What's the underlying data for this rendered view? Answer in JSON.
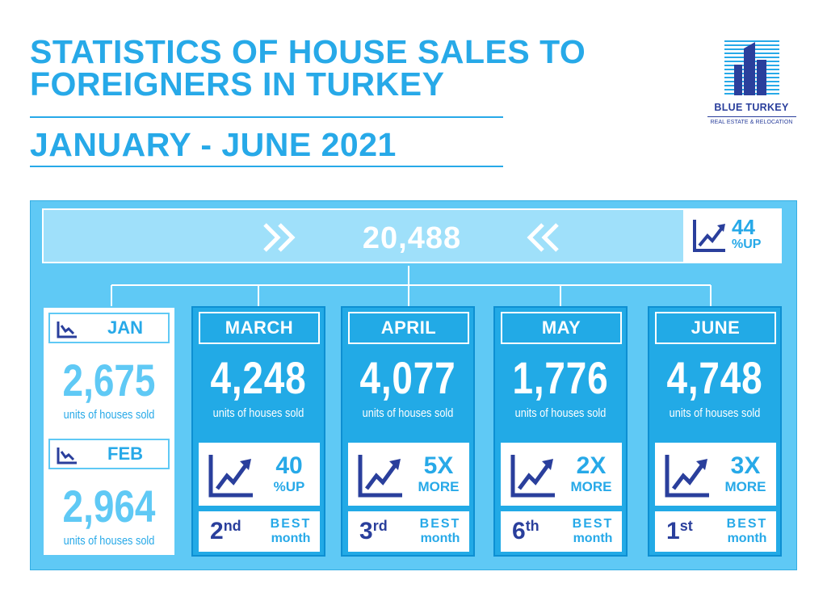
{
  "header": {
    "title": "STATISTICS OF HOUSE SALES TO FOREIGNERS IN TURKEY",
    "subtitle": "JANUARY - JUNE 2021"
  },
  "logo": {
    "name": "BLUE TURKEY",
    "tagline": "REAL ESTATE & RELOCATION"
  },
  "total": {
    "value": "20,488",
    "change_value": "44",
    "change_label": "%UP"
  },
  "jan_feb": {
    "jan": {
      "label": "JAN",
      "value": "2,675",
      "units": "units of houses sold"
    },
    "feb": {
      "label": "FEB",
      "value": "2,964",
      "units": "units of houses sold"
    }
  },
  "months": [
    {
      "label": "MARCH",
      "value": "4,248",
      "units": "units of houses sold",
      "stat_top": "40",
      "stat_bottom": "%UP",
      "rank": "2",
      "rank_suffix": "nd",
      "rank_best": "BEST",
      "rank_month": "month"
    },
    {
      "label": "APRIL",
      "value": "4,077",
      "units": "units of houses sold",
      "stat_top": "5X",
      "stat_bottom": "MORE",
      "rank": "3",
      "rank_suffix": "rd",
      "rank_best": "BEST",
      "rank_month": "month"
    },
    {
      "label": "MAY",
      "value": "1,776",
      "units": "units of houses sold",
      "stat_top": "2X",
      "stat_bottom": "MORE",
      "rank": "6",
      "rank_suffix": "th",
      "rank_best": "BEST",
      "rank_month": "month"
    },
    {
      "label": "JUNE",
      "value": "4,748",
      "units": "units of houses sold",
      "stat_top": "3X",
      "stat_bottom": "MORE",
      "rank": "1",
      "rank_suffix": "st",
      "rank_best": "BEST",
      "rank_month": "month"
    }
  ],
  "icons": {
    "trend_up": "trend-up-icon",
    "trend_down": "trend-down-icon",
    "chevrons": "double-chevron-icon",
    "logo": "building-logo-icon"
  },
  "colors": {
    "accent": "#27a9e8",
    "navy": "#2a3f9c",
    "panel": "#5fc9f5",
    "card": "#22aae6"
  }
}
